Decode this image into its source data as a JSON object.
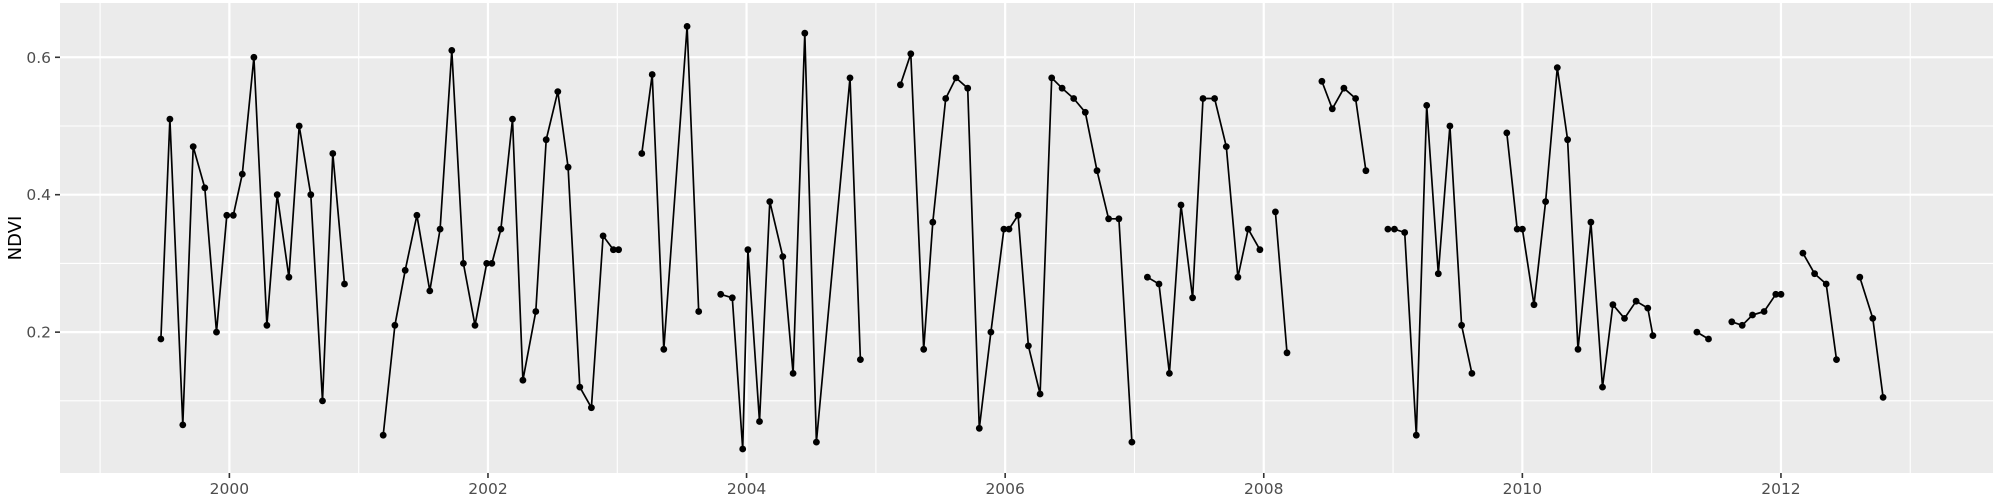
{
  "figure": {
    "kind": "ggplot-style time series",
    "ylabel": "NDVI"
  },
  "chart_data": {
    "type": "line",
    "title": "",
    "xlabel": "",
    "ylabel": "NDVI",
    "legend": "none",
    "grid": true,
    "panel_bg": "#EBEBEB",
    "grid_color": "#FFFFFF",
    "data_color": "#000000",
    "tick_label_color": "#4D4D4D",
    "axis_title_color": "#000000",
    "tick_mark_color": "#333333",
    "xlim": [
      1998.69,
      2013.64
    ],
    "ylim": [
      -0.005,
      0.679
    ],
    "x_major_ticks": [
      2000,
      2002,
      2004,
      2006,
      2008,
      2010,
      2012
    ],
    "x_tick_labels": [
      "2000",
      "2002",
      "2004",
      "2006",
      "2008",
      "2010",
      "2012"
    ],
    "x_minor_gridlines": [
      1999,
      2001,
      2003,
      2005,
      2007,
      2009,
      2011,
      2013
    ],
    "y_major_ticks": [
      0.2,
      0.4,
      0.6
    ],
    "y_tick_labels": [
      "0.2",
      "0.4",
      "0.6"
    ],
    "y_minor_gridlines": [
      0.1,
      0.3,
      0.5
    ],
    "series": [
      {
        "name": "NDVI",
        "segments": [
          [
            [
              1999.47,
              0.19
            ],
            [
              1999.54,
              0.51
            ],
            [
              1999.64,
              0.065
            ],
            [
              1999.72,
              0.47
            ],
            [
              1999.81,
              0.41
            ],
            [
              1999.9,
              0.2
            ],
            [
              1999.98,
              0.37
            ],
            [
              2000.03,
              0.37
            ],
            [
              2000.1,
              0.43
            ],
            [
              2000.19,
              0.6
            ],
            [
              2000.29,
              0.21
            ],
            [
              2000.37,
              0.4
            ],
            [
              2000.46,
              0.28
            ],
            [
              2000.54,
              0.5
            ],
            [
              2000.63,
              0.4
            ],
            [
              2000.72,
              0.1
            ],
            [
              2000.8,
              0.46
            ],
            [
              2000.89,
              0.27
            ]
          ],
          [
            [
              2001.19,
              0.05
            ],
            [
              2001.28,
              0.21
            ],
            [
              2001.36,
              0.29
            ],
            [
              2001.45,
              0.37
            ],
            [
              2001.55,
              0.26
            ],
            [
              2001.63,
              0.35
            ],
            [
              2001.72,
              0.61
            ],
            [
              2001.81,
              0.3
            ],
            [
              2001.9,
              0.21
            ],
            [
              2001.99,
              0.3
            ],
            [
              2002.03,
              0.3
            ],
            [
              2002.1,
              0.35
            ],
            [
              2002.19,
              0.51
            ],
            [
              2002.27,
              0.13
            ],
            [
              2002.37,
              0.23
            ],
            [
              2002.45,
              0.48
            ],
            [
              2002.54,
              0.55
            ],
            [
              2002.62,
              0.44
            ],
            [
              2002.71,
              0.12
            ],
            [
              2002.8,
              0.09
            ],
            [
              2002.89,
              0.34
            ],
            [
              2002.97,
              0.32
            ],
            [
              2003.01,
              0.32
            ]
          ],
          [
            [
              2003.19,
              0.46
            ],
            [
              2003.27,
              0.575
            ],
            [
              2003.36,
              0.175
            ],
            [
              2003.54,
              0.645
            ],
            [
              2003.63,
              0.23
            ]
          ],
          [
            [
              2003.8,
              0.255
            ],
            [
              2003.89,
              0.25
            ],
            [
              2003.97,
              0.03
            ],
            [
              2004.01,
              0.32
            ],
            [
              2004.1,
              0.07
            ],
            [
              2004.18,
              0.39
            ],
            [
              2004.28,
              0.31
            ],
            [
              2004.36,
              0.14
            ],
            [
              2004.45,
              0.635
            ],
            [
              2004.54,
              0.04
            ],
            [
              2004.8,
              0.57
            ],
            [
              2004.88,
              0.16
            ]
          ],
          [
            [
              2005.19,
              0.56
            ],
            [
              2005.27,
              0.605
            ],
            [
              2005.37,
              0.175
            ],
            [
              2005.44,
              0.36
            ],
            [
              2005.54,
              0.54
            ],
            [
              2005.62,
              0.57
            ],
            [
              2005.71,
              0.555
            ],
            [
              2005.8,
              0.06
            ],
            [
              2005.89,
              0.2
            ],
            [
              2005.99,
              0.35
            ],
            [
              2006.03,
              0.35
            ],
            [
              2006.1,
              0.37
            ],
            [
              2006.18,
              0.18
            ],
            [
              2006.27,
              0.11
            ],
            [
              2006.36,
              0.57
            ],
            [
              2006.44,
              0.555
            ],
            [
              2006.53,
              0.54
            ],
            [
              2006.62,
              0.52
            ],
            [
              2006.71,
              0.435
            ],
            [
              2006.8,
              0.365
            ],
            [
              2006.88,
              0.365
            ],
            [
              2006.98,
              0.04
            ]
          ],
          [
            [
              2007.1,
              0.28
            ],
            [
              2007.19,
              0.27
            ],
            [
              2007.27,
              0.14
            ],
            [
              2007.36,
              0.385
            ],
            [
              2007.45,
              0.25
            ],
            [
              2007.53,
              0.54
            ],
            [
              2007.62,
              0.54
            ],
            [
              2007.71,
              0.47
            ],
            [
              2007.8,
              0.28
            ],
            [
              2007.88,
              0.35
            ],
            [
              2007.97,
              0.32
            ]
          ],
          [
            [
              2008.09,
              0.375
            ],
            [
              2008.18,
              0.17
            ]
          ],
          [
            [
              2008.45,
              0.565
            ],
            [
              2008.53,
              0.525
            ],
            [
              2008.62,
              0.555
            ],
            [
              2008.71,
              0.54
            ],
            [
              2008.79,
              0.435
            ]
          ],
          [
            [
              2008.96,
              0.35
            ],
            [
              2009.01,
              0.35
            ],
            [
              2009.09,
              0.345
            ],
            [
              2009.18,
              0.05
            ],
            [
              2009.26,
              0.53
            ],
            [
              2009.35,
              0.285
            ],
            [
              2009.44,
              0.5
            ],
            [
              2009.53,
              0.21
            ],
            [
              2009.61,
              0.14
            ]
          ],
          [
            [
              2009.88,
              0.49
            ],
            [
              2009.96,
              0.35
            ],
            [
              2010.0,
              0.35
            ],
            [
              2010.09,
              0.24
            ],
            [
              2010.18,
              0.39
            ],
            [
              2010.27,
              0.585
            ],
            [
              2010.35,
              0.48
            ],
            [
              2010.43,
              0.175
            ],
            [
              2010.53,
              0.36
            ],
            [
              2010.62,
              0.12
            ],
            [
              2010.7,
              0.24
            ],
            [
              2010.79,
              0.22
            ],
            [
              2010.88,
              0.245
            ],
            [
              2010.97,
              0.235
            ],
            [
              2011.01,
              0.195
            ]
          ],
          [
            [
              2011.35,
              0.2
            ],
            [
              2011.44,
              0.19
            ]
          ],
          [
            [
              2011.62,
              0.215
            ],
            [
              2011.7,
              0.21
            ],
            [
              2011.78,
              0.225
            ],
            [
              2011.87,
              0.23
            ],
            [
              2011.96,
              0.255
            ],
            [
              2012.0,
              0.255
            ]
          ],
          [
            [
              2012.17,
              0.315
            ],
            [
              2012.26,
              0.285
            ],
            [
              2012.35,
              0.27
            ],
            [
              2012.43,
              0.16
            ]
          ],
          [
            [
              2012.61,
              0.28
            ],
            [
              2012.71,
              0.22
            ],
            [
              2012.79,
              0.105
            ]
          ]
        ]
      }
    ]
  }
}
